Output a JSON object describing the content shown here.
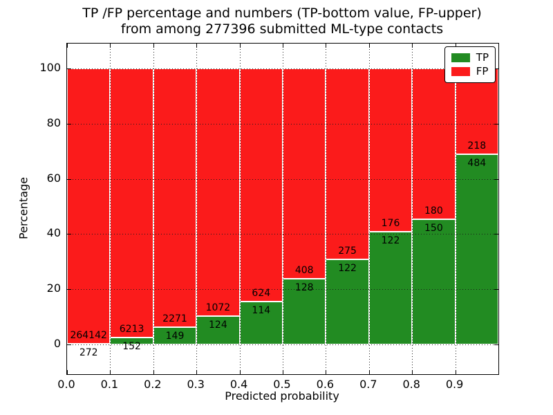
{
  "title": {
    "line1": "TP /FP percentage and numbers (TP-bottom value, FP-upper)",
    "line2": "from among 277396 submitted ML-type contacts"
  },
  "axes": {
    "xlabel": "Predicted probability",
    "ylabel": "Percentage",
    "x_ticks": [
      0.0,
      0.1,
      0.2,
      0.3,
      0.4,
      0.5,
      0.6,
      0.7,
      0.8,
      0.9
    ],
    "x_tick_labels": [
      "0.0",
      "0.1",
      "0.2",
      "0.3",
      "0.4",
      "0.5",
      "0.6",
      "0.7",
      "0.8",
      "0.9"
    ],
    "y_ticks": [
      0,
      20,
      40,
      60,
      80,
      100
    ],
    "y_tick_labels": [
      "0",
      "20",
      "40",
      "60",
      "80",
      "100"
    ]
  },
  "legend": {
    "entries": [
      {
        "label": "TP",
        "key": "tp"
      },
      {
        "label": "FP",
        "key": "fp"
      }
    ]
  },
  "colors": {
    "tp": "#228b22",
    "fp": "#fb1b1b",
    "grid": "#1a1a1a",
    "axis": "#000000",
    "bar_edge": "#ffffff",
    "background": "#ffffff"
  },
  "chart_data": {
    "type": "bar",
    "variant": "stacked-percentage",
    "title": "TP /FP percentage and numbers (TP-bottom value, FP-upper) from among 277396 submitted ML-type contacts",
    "total_submitted": 277396,
    "xlabel": "Predicted probability",
    "ylabel": "Percentage",
    "xlim": [
      0.0,
      1.0
    ],
    "ylim": [
      -10.8,
      109.0
    ],
    "grid": "dotted",
    "legend_position": "upper right",
    "bin_edges": [
      0.0,
      0.1,
      0.2,
      0.3,
      0.4,
      0.5,
      0.6,
      0.7,
      0.8,
      0.9,
      1.0
    ],
    "categories": [
      "0.0-0.1",
      "0.1-0.2",
      "0.2-0.3",
      "0.3-0.4",
      "0.4-0.5",
      "0.5-0.6",
      "0.6-0.7",
      "0.7-0.8",
      "0.8-0.9",
      "0.9-1.0"
    ],
    "series": [
      {
        "name": "TP",
        "color": "#228b22",
        "values": [
          272,
          152,
          149,
          124,
          114,
          128,
          122,
          122,
          150,
          484
        ]
      },
      {
        "name": "FP",
        "color": "#fb1b1b",
        "values": [
          264142,
          6213,
          2271,
          1072,
          624,
          408,
          275,
          176,
          180,
          218
        ]
      }
    ],
    "tp_percent": [
      0.1,
      2.4,
      6.2,
      10.4,
      15.4,
      23.9,
      30.7,
      40.9,
      45.5,
      68.9
    ]
  }
}
